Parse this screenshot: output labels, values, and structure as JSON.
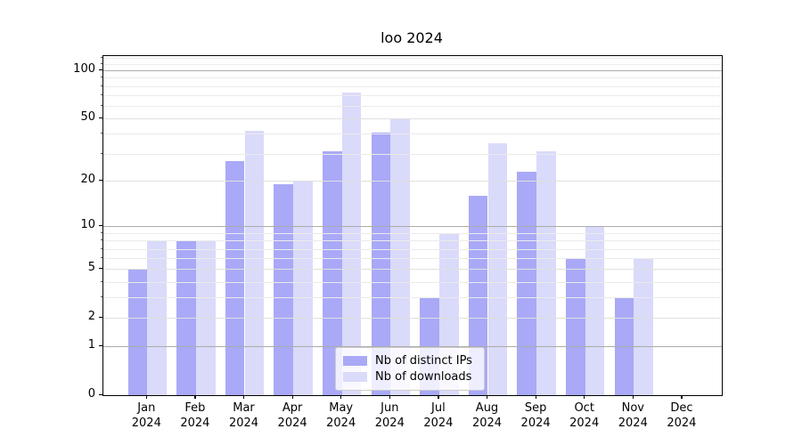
{
  "title": "loo 2024",
  "chart_data": {
    "type": "bar",
    "title": "loo 2024",
    "categories": [
      "Jan",
      "Feb",
      "Mar",
      "Apr",
      "May",
      "Jun",
      "Jul",
      "Aug",
      "Sep",
      "Oct",
      "Nov",
      "Dec"
    ],
    "year_label": "2024",
    "series": [
      {
        "name": "Nb of distinct IPs",
        "color": "#a9a9f7",
        "values": [
          5,
          8,
          27,
          19,
          31,
          41,
          3,
          16,
          23,
          6,
          3,
          0
        ]
      },
      {
        "name": "Nb of downloads",
        "color": "#dadafa",
        "values": [
          8,
          8,
          42,
          20,
          73,
          50,
          9,
          35,
          31,
          10,
          6,
          0
        ]
      }
    ],
    "xlabel": "",
    "ylabel": "",
    "yscale": "log1p",
    "ylim": [
      0,
      123
    ],
    "yticks": [
      0,
      1,
      2,
      5,
      10,
      20,
      50,
      100
    ],
    "minor_yticks": [
      3,
      4,
      6,
      7,
      8,
      9,
      30,
      40,
      60,
      70,
      80,
      90,
      110,
      120
    ],
    "decade_gridlines": [
      1,
      10,
      100
    ],
    "grid": true,
    "legend_position": "lower center"
  },
  "colors": {
    "bar_distinct_ips": "#a9a9f7",
    "bar_downloads": "#dadafa",
    "grid_decade": "#ababab",
    "grid_labeled": "#e0e0e0",
    "grid_minor": "#ebebeb",
    "axis": "#000000",
    "legend_border": "#cccccc"
  }
}
